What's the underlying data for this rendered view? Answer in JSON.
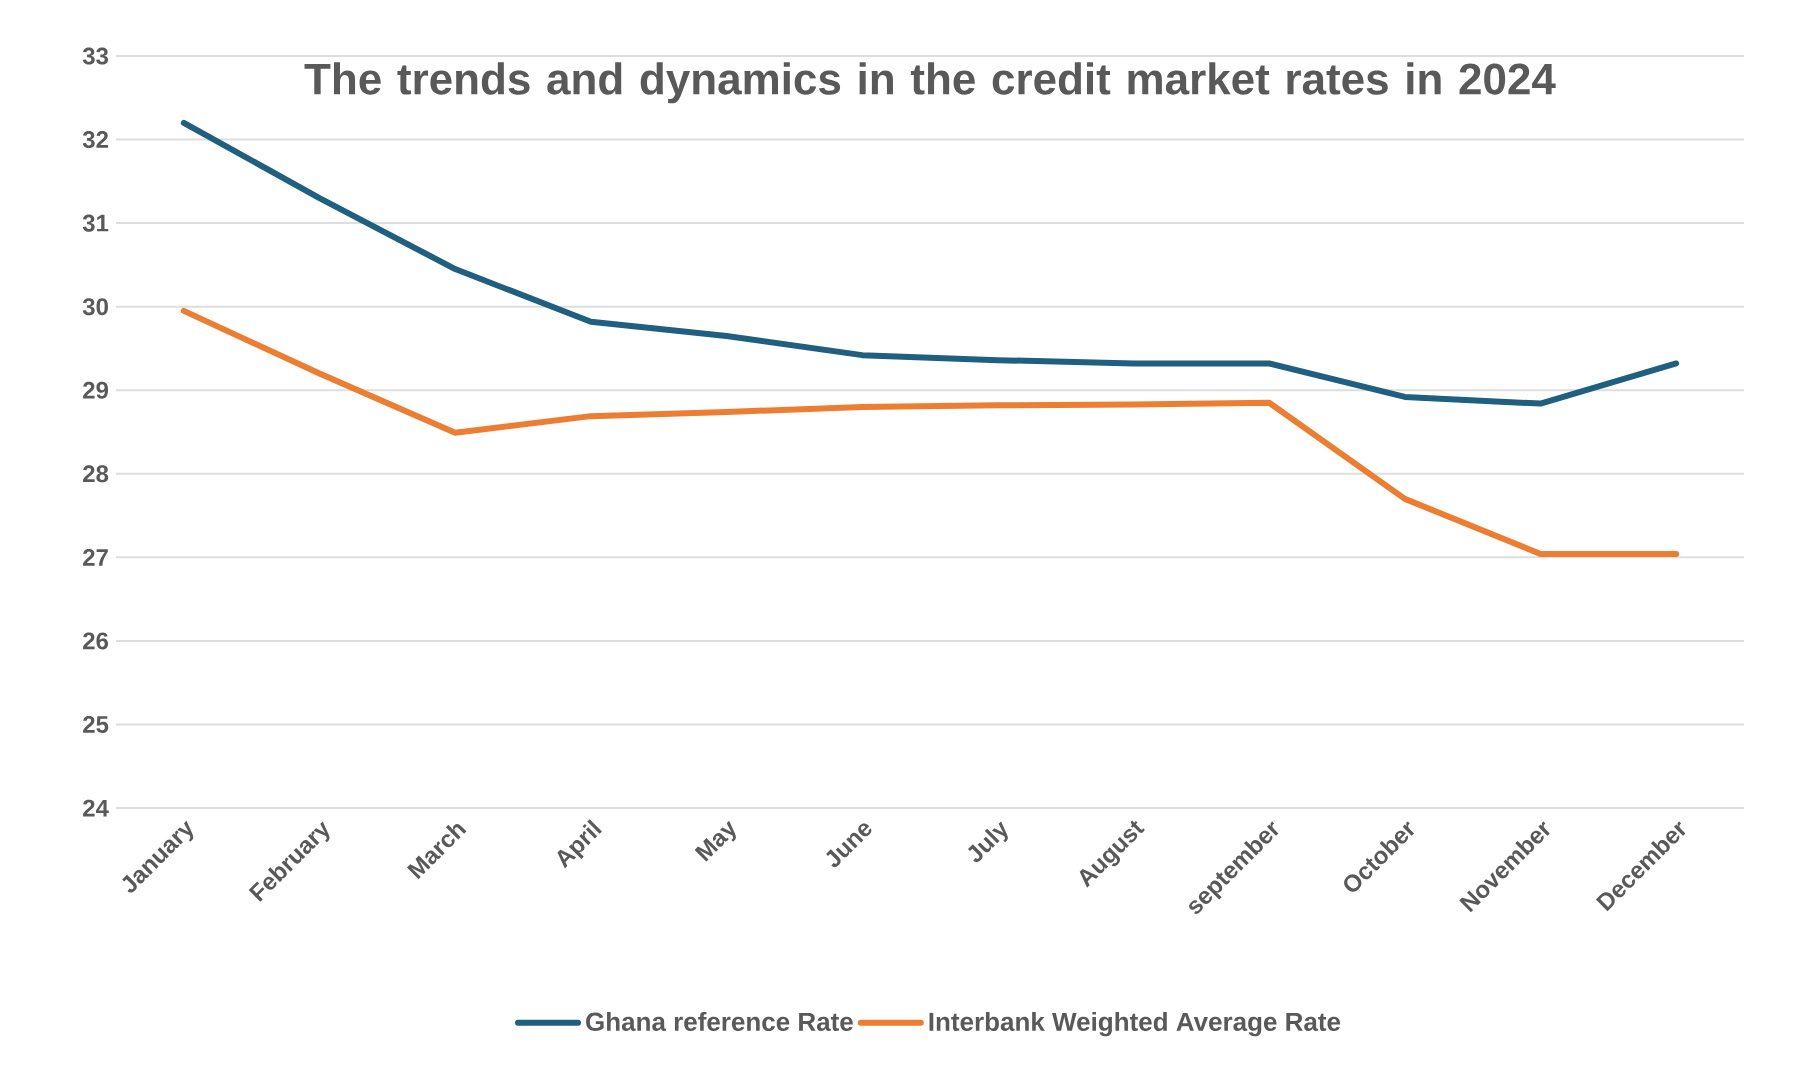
{
  "chart_data": {
    "type": "line",
    "title": "The trends and dynamics in the credit market rates in 2024",
    "categories": [
      "January",
      "February",
      "March",
      "April",
      "May",
      "June",
      "July",
      "August",
      "september",
      "October",
      "November",
      "December"
    ],
    "series": [
      {
        "name": "Ghana reference Rate",
        "color": "#1f5f7f",
        "values": [
          32.2,
          31.3,
          30.45,
          29.82,
          29.65,
          29.42,
          29.36,
          29.32,
          29.32,
          28.92,
          28.84,
          29.32
        ]
      },
      {
        "name": "Interbank Weighted Average Rate",
        "color": "#ed7d31",
        "values": [
          29.95,
          29.2,
          28.49,
          28.69,
          28.74,
          28.8,
          28.82,
          28.83,
          28.85,
          27.7,
          27.04,
          27.04
        ]
      }
    ],
    "ylim": [
      24,
      33
    ],
    "yticks": [
      24,
      25,
      26,
      27,
      28,
      29,
      30,
      31,
      32,
      33
    ],
    "grid": "y",
    "legend": "bottom",
    "marker": "none",
    "line_style": "solid"
  }
}
